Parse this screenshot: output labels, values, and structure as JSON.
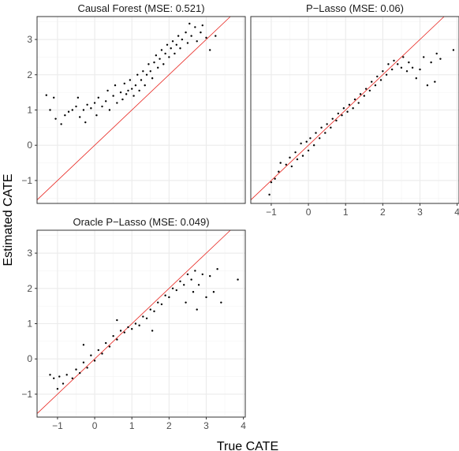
{
  "chart_data": {
    "type": "scatter",
    "xlabel": "True CATE",
    "ylabel": "Estimated CATE",
    "xlim": [
      -1.55,
      4.05
    ],
    "ylim": [
      -1.65,
      3.65
    ],
    "x_ticks": [
      -1,
      0,
      1,
      2,
      3,
      4
    ],
    "y_ticks": [
      -1,
      0,
      1,
      2,
      3
    ],
    "grid": true,
    "reference_line": "y = x",
    "point_color": "#000000",
    "reference_line_color": "#e8251f",
    "panels": [
      {
        "title": "Causal Forest (MSE: 0.521)",
        "points": [
          [
            -1.3,
            1.42
          ],
          [
            -1.1,
            1.35
          ],
          [
            -1.2,
            1.0
          ],
          [
            -1.05,
            0.75
          ],
          [
            -0.9,
            0.6
          ],
          [
            -0.8,
            0.85
          ],
          [
            -0.7,
            0.95
          ],
          [
            -0.6,
            1.0
          ],
          [
            -0.5,
            1.1
          ],
          [
            -0.45,
            1.35
          ],
          [
            -0.4,
            0.8
          ],
          [
            -0.3,
            1.0
          ],
          [
            -0.25,
            0.65
          ],
          [
            -0.2,
            1.15
          ],
          [
            -0.1,
            1.05
          ],
          [
            0.0,
            1.2
          ],
          [
            0.05,
            0.85
          ],
          [
            0.1,
            1.35
          ],
          [
            0.2,
            1.1
          ],
          [
            0.3,
            1.25
          ],
          [
            0.35,
            1.55
          ],
          [
            0.4,
            1.0
          ],
          [
            0.5,
            1.4
          ],
          [
            0.55,
            1.7
          ],
          [
            0.6,
            1.2
          ],
          [
            0.7,
            1.5
          ],
          [
            0.75,
            1.3
          ],
          [
            0.8,
            1.75
          ],
          [
            0.85,
            1.45
          ],
          [
            0.9,
            1.55
          ],
          [
            0.95,
            1.85
          ],
          [
            1.0,
            1.6
          ],
          [
            1.05,
            1.4
          ],
          [
            1.1,
            1.7
          ],
          [
            1.15,
            2.0
          ],
          [
            1.2,
            1.55
          ],
          [
            1.25,
            1.85
          ],
          [
            1.3,
            2.1
          ],
          [
            1.35,
            1.7
          ],
          [
            1.4,
            2.0
          ],
          [
            1.45,
            2.3
          ],
          [
            1.5,
            2.1
          ],
          [
            1.55,
            1.9
          ],
          [
            1.6,
            2.35
          ],
          [
            1.65,
            2.55
          ],
          [
            1.7,
            2.2
          ],
          [
            1.75,
            2.45
          ],
          [
            1.8,
            2.7
          ],
          [
            1.85,
            2.3
          ],
          [
            1.9,
            2.6
          ],
          [
            1.95,
            2.85
          ],
          [
            2.0,
            2.5
          ],
          [
            2.05,
            2.75
          ],
          [
            2.1,
            2.95
          ],
          [
            2.15,
            2.6
          ],
          [
            2.2,
            2.85
          ],
          [
            2.25,
            3.1
          ],
          [
            2.3,
            2.75
          ],
          [
            2.35,
            3.0
          ],
          [
            2.45,
            3.2
          ],
          [
            2.5,
            2.9
          ],
          [
            2.6,
            3.1
          ],
          [
            2.7,
            3.35
          ],
          [
            2.75,
            2.95
          ],
          [
            2.85,
            3.2
          ],
          [
            3.0,
            3.05
          ],
          [
            3.1,
            2.7
          ],
          [
            3.25,
            3.1
          ],
          [
            2.55,
            3.45
          ],
          [
            2.9,
            3.4
          ]
        ]
      },
      {
        "title": "P−Lasso (MSE: 0.06)",
        "points": [
          [
            -1.05,
            -1.4
          ],
          [
            -1.0,
            -1.05
          ],
          [
            -0.9,
            -0.95
          ],
          [
            -0.8,
            -0.75
          ],
          [
            -0.75,
            -0.5
          ],
          [
            -0.6,
            -0.55
          ],
          [
            -0.5,
            -0.35
          ],
          [
            -0.45,
            -0.6
          ],
          [
            -0.35,
            -0.2
          ],
          [
            -0.3,
            -0.4
          ],
          [
            -0.2,
            0.05
          ],
          [
            -0.15,
            -0.3
          ],
          [
            -0.05,
            0.1
          ],
          [
            0.0,
            -0.15
          ],
          [
            0.05,
            0.2
          ],
          [
            0.15,
            0.0
          ],
          [
            0.2,
            0.35
          ],
          [
            0.3,
            0.2
          ],
          [
            0.35,
            0.5
          ],
          [
            0.45,
            0.35
          ],
          [
            0.5,
            0.6
          ],
          [
            0.6,
            0.5
          ],
          [
            0.65,
            0.75
          ],
          [
            0.75,
            0.7
          ],
          [
            0.8,
            0.9
          ],
          [
            0.9,
            0.85
          ],
          [
            0.95,
            1.05
          ],
          [
            1.05,
            0.95
          ],
          [
            1.1,
            1.15
          ],
          [
            1.2,
            1.05
          ],
          [
            1.25,
            1.3
          ],
          [
            1.35,
            1.2
          ],
          [
            1.4,
            1.45
          ],
          [
            1.5,
            1.4
          ],
          [
            1.55,
            1.6
          ],
          [
            1.65,
            1.55
          ],
          [
            1.7,
            1.8
          ],
          [
            1.8,
            1.7
          ],
          [
            1.85,
            1.95
          ],
          [
            1.95,
            1.85
          ],
          [
            2.0,
            2.1
          ],
          [
            2.1,
            2.0
          ],
          [
            2.15,
            2.3
          ],
          [
            2.25,
            2.15
          ],
          [
            2.3,
            2.4
          ],
          [
            2.4,
            2.3
          ],
          [
            2.5,
            2.2
          ],
          [
            2.55,
            2.5
          ],
          [
            2.65,
            2.1
          ],
          [
            2.7,
            2.35
          ],
          [
            2.8,
            2.2
          ],
          [
            2.9,
            1.9
          ],
          [
            3.0,
            2.15
          ],
          [
            3.1,
            2.5
          ],
          [
            3.2,
            1.7
          ],
          [
            3.3,
            2.35
          ],
          [
            3.45,
            2.6
          ],
          [
            3.55,
            2.45
          ],
          [
            3.9,
            2.7
          ],
          [
            3.4,
            1.8
          ]
        ]
      },
      {
        "title": "Oracle P−Lasso (MSE: 0.049)",
        "points": [
          [
            -1.2,
            -0.45
          ],
          [
            -1.1,
            -0.55
          ],
          [
            -1.0,
            -0.85
          ],
          [
            -0.95,
            -0.5
          ],
          [
            -0.85,
            -0.7
          ],
          [
            -0.75,
            -0.45
          ],
          [
            -0.6,
            -0.55
          ],
          [
            -0.5,
            -0.3
          ],
          [
            -0.4,
            -0.4
          ],
          [
            -0.3,
            -0.1
          ],
          [
            -0.2,
            -0.25
          ],
          [
            -0.1,
            0.1
          ],
          [
            0.0,
            -0.05
          ],
          [
            0.1,
            0.25
          ],
          [
            0.2,
            0.15
          ],
          [
            0.3,
            0.45
          ],
          [
            0.4,
            0.35
          ],
          [
            0.5,
            0.65
          ],
          [
            0.6,
            0.55
          ],
          [
            0.7,
            0.8
          ],
          [
            0.8,
            0.75
          ],
          [
            0.9,
            0.9
          ],
          [
            1.0,
            0.85
          ],
          [
            1.1,
            1.0
          ],
          [
            1.2,
            0.95
          ],
          [
            1.3,
            1.2
          ],
          [
            1.4,
            1.15
          ],
          [
            1.5,
            1.4
          ],
          [
            1.6,
            1.35
          ],
          [
            1.7,
            1.6
          ],
          [
            1.8,
            1.55
          ],
          [
            1.9,
            1.8
          ],
          [
            2.0,
            1.75
          ],
          [
            2.1,
            2.0
          ],
          [
            2.2,
            1.95
          ],
          [
            2.3,
            2.2
          ],
          [
            2.4,
            2.1
          ],
          [
            2.5,
            2.4
          ],
          [
            2.6,
            2.25
          ],
          [
            2.65,
            1.9
          ],
          [
            2.7,
            2.5
          ],
          [
            2.8,
            2.1
          ],
          [
            2.9,
            2.4
          ],
          [
            3.0,
            1.75
          ],
          [
            3.1,
            2.35
          ],
          [
            3.2,
            1.9
          ],
          [
            3.3,
            2.55
          ],
          [
            3.4,
            1.6
          ],
          [
            3.85,
            2.25
          ],
          [
            2.45,
            1.6
          ],
          [
            2.75,
            1.4
          ],
          [
            1.55,
            0.8
          ],
          [
            0.6,
            1.1
          ],
          [
            -0.3,
            0.4
          ]
        ]
      }
    ]
  }
}
